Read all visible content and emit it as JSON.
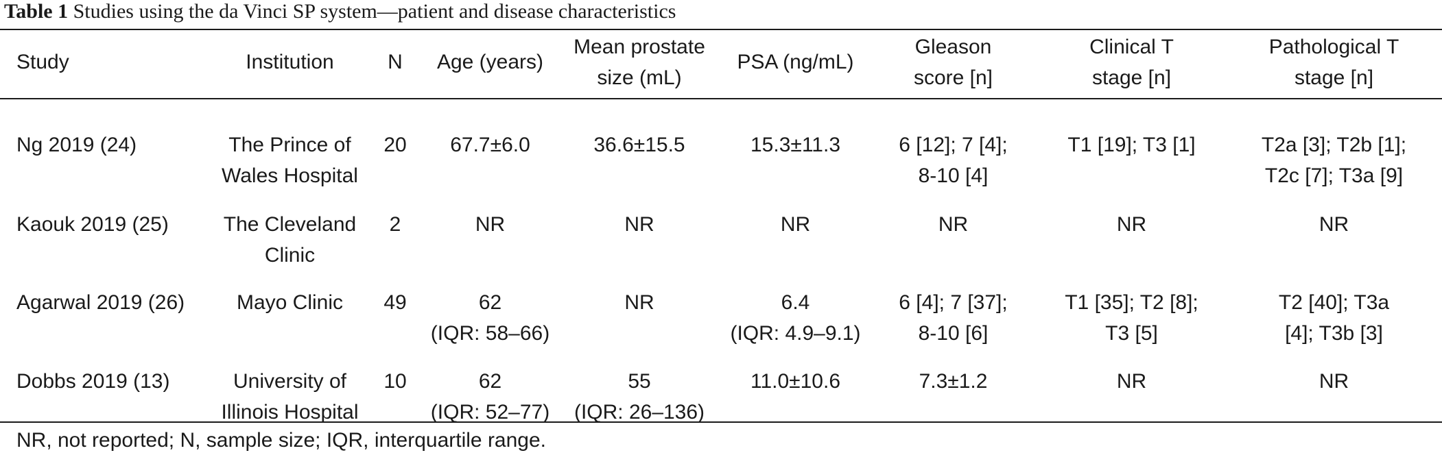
{
  "caption": {
    "label": "Table 1",
    "text": "Studies using the da Vinci SP system—patient and disease characteristics"
  },
  "columns": [
    {
      "line1": "Study",
      "line2": ""
    },
    {
      "line1": "Institution",
      "line2": ""
    },
    {
      "line1": "N",
      "line2": ""
    },
    {
      "line1": "Age (years)",
      "line2": ""
    },
    {
      "line1": "Mean prostate",
      "line2": "size (mL)"
    },
    {
      "line1": "PSA (ng/mL)",
      "line2": ""
    },
    {
      "line1": "Gleason",
      "line2": "score [n]"
    },
    {
      "line1": "Clinical T",
      "line2": "stage [n]"
    },
    {
      "line1": "Pathological T",
      "line2": "stage [n]"
    }
  ],
  "rows": [
    {
      "study": "Ng 2019 (24)",
      "institution": [
        "The Prince of",
        "Wales Hospital"
      ],
      "n": "20",
      "age": [
        "67.7±6.0",
        ""
      ],
      "prostate": [
        "36.6±15.5",
        ""
      ],
      "psa": [
        "15.3±11.3",
        ""
      ],
      "gleason": [
        "6 [12]; 7 [4];",
        "8-10 [4]"
      ],
      "clinical": [
        "T1 [19]; T3 [1]",
        ""
      ],
      "pathological": [
        "T2a [3]; T2b [1];",
        "T2c [7]; T3a [9]"
      ]
    },
    {
      "study": "Kaouk 2019 (25)",
      "institution": [
        "The Cleveland",
        "Clinic"
      ],
      "n": "2",
      "age": [
        "NR",
        ""
      ],
      "prostate": [
        "NR",
        ""
      ],
      "psa": [
        "NR",
        ""
      ],
      "gleason": [
        "NR",
        ""
      ],
      "clinical": [
        "NR",
        ""
      ],
      "pathological": [
        "NR",
        ""
      ]
    },
    {
      "study": "Agarwal 2019 (26)",
      "institution": [
        "Mayo Clinic",
        ""
      ],
      "n": "49",
      "age": [
        "62",
        "(IQR: 58–66)"
      ],
      "prostate": [
        "NR",
        ""
      ],
      "psa": [
        "6.4",
        "(IQR: 4.9–9.1)"
      ],
      "gleason": [
        "6 [4]; 7 [37];",
        "8-10 [6]"
      ],
      "clinical": [
        "T1 [35]; T2 [8];",
        "T3 [5]"
      ],
      "pathological": [
        "T2 [40]; T3a",
        "[4]; T3b [3]"
      ]
    },
    {
      "study": "Dobbs 2019 (13)",
      "institution": [
        "University of",
        "Illinois Hospital"
      ],
      "n": "10",
      "age": [
        "62",
        "(IQR: 52–77)"
      ],
      "prostate": [
        "55",
        "(IQR: 26–136)"
      ],
      "psa": [
        "11.0±10.6",
        ""
      ],
      "gleason": [
        "7.3±1.2",
        ""
      ],
      "clinical": [
        "NR",
        ""
      ],
      "pathological": [
        "NR",
        ""
      ]
    }
  ],
  "footnote": "NR, not reported; N, sample size; IQR, interquartile range."
}
